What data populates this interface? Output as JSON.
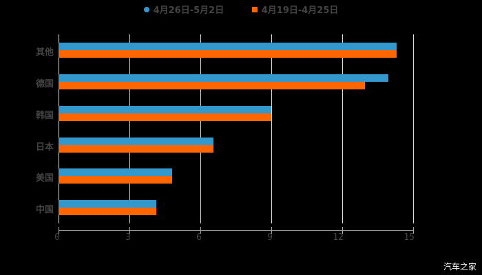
{
  "legend": [
    {
      "label": "4月26日-5月2日",
      "color": "#3399cc"
    },
    {
      "label": "4月19日-4月25日",
      "color": "#ff6600"
    }
  ],
  "watermark": "汽车之家",
  "chart_data": {
    "type": "bar",
    "orientation": "horizontal",
    "title": "",
    "categories": [
      "其他",
      "德国",
      "韩国",
      "日本",
      "美国",
      "中国"
    ],
    "series": [
      {
        "name": "4月26日-5月2日",
        "color": "#3399cc",
        "values": [
          14.3,
          13.95,
          9.0,
          6.55,
          4.8,
          4.15
        ]
      },
      {
        "name": "4月19日-4月25日",
        "color": "#ff6600",
        "values": [
          14.3,
          12.95,
          9.0,
          6.55,
          4.8,
          4.15
        ]
      }
    ],
    "xlim": [
      0,
      15
    ],
    "xticks": [
      0,
      3,
      6,
      9,
      12,
      15
    ],
    "grid": true,
    "legend_position": "top"
  }
}
